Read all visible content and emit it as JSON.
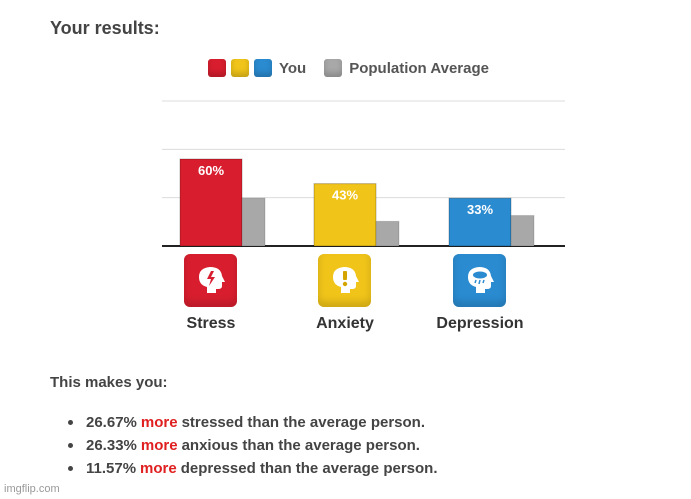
{
  "page": {
    "title": "Your results:"
  },
  "legend": {
    "you_label": "You",
    "avg_label": "Population Average",
    "swatches": [
      "#d81e2e",
      "#f0c419",
      "#2a8bd0",
      "#a8a8a8"
    ]
  },
  "chart_data": {
    "type": "bar",
    "categories": [
      "Stress",
      "Anxiety",
      "Depression"
    ],
    "series": [
      {
        "name": "You",
        "values": [
          60,
          43,
          33
        ],
        "labels": [
          "60%",
          "43%",
          "33%"
        ],
        "colors": [
          "#d81e2e",
          "#f0c419",
          "#2a8bd0"
        ]
      },
      {
        "name": "Population Average",
        "values": [
          33,
          17,
          21
        ],
        "colors": [
          "#a8a8a8",
          "#a8a8a8",
          "#a8a8a8"
        ]
      }
    ],
    "ylim": [
      0,
      100
    ],
    "grid": true,
    "legend_position": "top-center"
  },
  "categories": [
    {
      "label": "Stress",
      "icon": "stress-icon",
      "color": "#d81e2e"
    },
    {
      "label": "Anxiety",
      "icon": "anxiety-icon",
      "color": "#f0c419"
    },
    {
      "label": "Depression",
      "icon": "depression-icon",
      "color": "#2a8bd0"
    }
  ],
  "summary": {
    "heading": "This makes you:",
    "items": [
      {
        "value": "26.67%",
        "keyword": "more",
        "rest": "stressed than the average person."
      },
      {
        "value": "26.33%",
        "keyword": "more",
        "rest": "anxious than the average person."
      },
      {
        "value": "11.57%",
        "keyword": "more",
        "rest": "depressed than the average person."
      }
    ]
  },
  "watermark": "imgflip.com"
}
